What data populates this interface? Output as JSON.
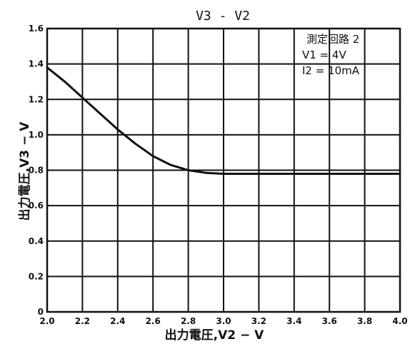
{
  "chart_data": {
    "type": "line",
    "title": "V3 - V2",
    "xlabel": "出力電圧,V2 − V",
    "ylabel": "出力電圧,V3 − V",
    "xlim": [
      2.0,
      4.0
    ],
    "ylim": [
      0.0,
      1.6
    ],
    "xticks": [
      "2.0",
      "2.2",
      "2.4",
      "2.6",
      "2.8",
      "3.0",
      "3.2",
      "3.4",
      "3.6",
      "3.8",
      "4.0"
    ],
    "yticks": [
      "0",
      "0.2",
      "0.4",
      "0.6",
      "0.8",
      "1.0",
      "1.2",
      "1.4",
      "1.6"
    ],
    "grid": true,
    "annotation": [
      "測定回路 2",
      "V1 = 4V",
      "I2 = 10mA"
    ],
    "series": [
      {
        "x": [
          2.0,
          2.1,
          2.2,
          2.3,
          2.4,
          2.5,
          2.6,
          2.7,
          2.8,
          2.9,
          3.0,
          3.2,
          3.4,
          3.6,
          3.8,
          4.0
        ],
        "values": [
          1.38,
          1.3,
          1.21,
          1.12,
          1.03,
          0.95,
          0.88,
          0.83,
          0.8,
          0.785,
          0.78,
          0.78,
          0.78,
          0.78,
          0.78,
          0.78
        ]
      }
    ],
    "line_color": "#111111",
    "grid_color": "#111111"
  }
}
